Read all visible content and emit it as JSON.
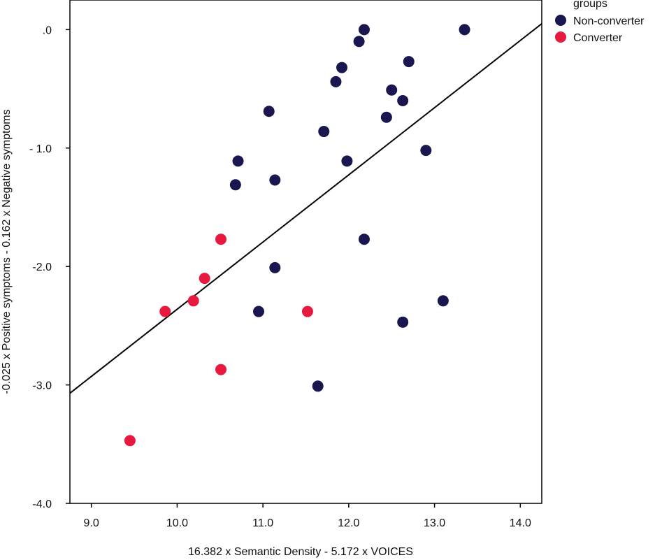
{
  "chart_data": {
    "type": "scatter",
    "title": "",
    "xlabel": "16.382 x Semantic Density - 5.172 x VOICES",
    "ylabel": "-0.025 x Positive symptoms - 0.162 x Negative symptoms",
    "xlim": [
      8.75,
      14.25
    ],
    "ylim": [
      -4.0,
      0.25
    ],
    "xticks": [
      9.0,
      10.0,
      11.0,
      12.0,
      13.0,
      14.0
    ],
    "xtick_labels": [
      "9.0",
      "10.0",
      "11.0",
      "12.0",
      "13.0",
      "14.0"
    ],
    "yticks": [
      0.0,
      -1.0,
      -2.0,
      -3.0,
      -4.0
    ],
    "ytick_labels": [
      ".0",
      "- 1.0",
      "-2.0",
      "-3.0",
      "-4.0"
    ],
    "grid": false,
    "legend": {
      "title": "groups",
      "placement": "top-right",
      "entries": [
        {
          "name": "Non-converter",
          "color": "#1a1650"
        },
        {
          "name": "Converter",
          "color": "#e8193f"
        }
      ]
    },
    "series": [
      {
        "name": "Non-converter",
        "color": "#1a1650",
        "points": [
          {
            "x": 12.18,
            "y": 0.0
          },
          {
            "x": 13.35,
            "y": 0.0
          },
          {
            "x": 12.12,
            "y": -0.1
          },
          {
            "x": 12.7,
            "y": -0.27
          },
          {
            "x": 11.92,
            "y": -0.32
          },
          {
            "x": 11.85,
            "y": -0.44
          },
          {
            "x": 12.5,
            "y": -0.51
          },
          {
            "x": 12.63,
            "y": -0.6
          },
          {
            "x": 11.07,
            "y": -0.69
          },
          {
            "x": 12.44,
            "y": -0.74
          },
          {
            "x": 11.71,
            "y": -0.86
          },
          {
            "x": 12.9,
            "y": -1.02
          },
          {
            "x": 10.71,
            "y": -1.11
          },
          {
            "x": 11.98,
            "y": -1.11
          },
          {
            "x": 10.68,
            "y": -1.31
          },
          {
            "x": 11.14,
            "y": -1.27
          },
          {
            "x": 12.18,
            "y": -1.77
          },
          {
            "x": 11.14,
            "y": -2.01
          },
          {
            "x": 10.95,
            "y": -2.38
          },
          {
            "x": 13.1,
            "y": -2.29
          },
          {
            "x": 12.63,
            "y": -2.47
          },
          {
            "x": 11.64,
            "y": -3.01
          }
        ]
      },
      {
        "name": "Converter",
        "color": "#e8193f",
        "points": [
          {
            "x": 10.51,
            "y": -1.77
          },
          {
            "x": 10.32,
            "y": -2.1
          },
          {
            "x": 10.19,
            "y": -2.29
          },
          {
            "x": 9.86,
            "y": -2.38
          },
          {
            "x": 11.52,
            "y": -2.38
          },
          {
            "x": 10.51,
            "y": -2.87
          },
          {
            "x": 9.45,
            "y": -3.47
          }
        ]
      }
    ],
    "fit_line": {
      "x": [
        8.75,
        14.25
      ],
      "y": [
        -3.07,
        0.05
      ],
      "color": "#000000"
    }
  }
}
